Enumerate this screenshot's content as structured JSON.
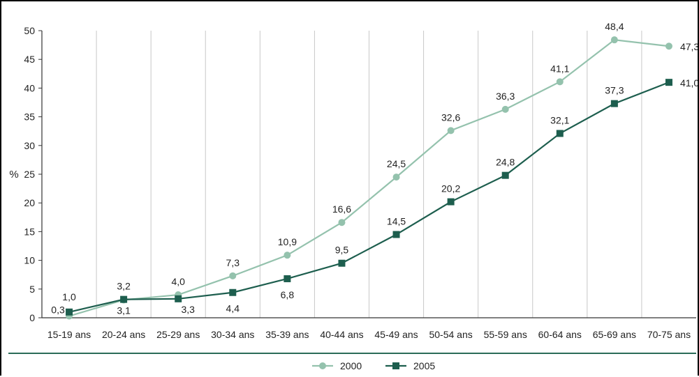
{
  "chart_data": {
    "type": "line",
    "ylabel": "%",
    "xlabel": "",
    "ylim": [
      0,
      50
    ],
    "yticks": [
      0,
      5,
      10,
      15,
      20,
      25,
      30,
      35,
      40,
      45,
      50
    ],
    "categories": [
      "15-19 ans",
      "20-24 ans",
      "25-29 ans",
      "30-34 ans",
      "35-39 ans",
      "40-44 ans",
      "45-49 ans",
      "50-54 ans",
      "55-59 ans",
      "60-64 ans",
      "65-69 ans",
      "70-75 ans"
    ],
    "series": [
      {
        "name": "2000",
        "color": "#94c2ad",
        "marker": "circle",
        "values": [
          0.3,
          3.1,
          4.0,
          7.3,
          10.9,
          16.6,
          24.5,
          32.6,
          36.3,
          41.1,
          48.4,
          47.3
        ],
        "labels": [
          "0,3",
          "3,1",
          "4,0",
          "7,3",
          "10,9",
          "16,6",
          "24,5",
          "32,6",
          "36,3",
          "41,1",
          "48,4",
          "47,3"
        ]
      },
      {
        "name": "2005",
        "color": "#1d5e4e",
        "marker": "square",
        "values": [
          1.0,
          3.2,
          3.3,
          4.4,
          6.8,
          9.5,
          14.5,
          20.2,
          24.8,
          32.1,
          37.3,
          41.0
        ],
        "labels": [
          "1,0",
          "3,2",
          "3,3",
          "4,4",
          "6,8",
          "9,5",
          "14,5",
          "20,2",
          "24,8",
          "32,1",
          "37,3",
          "41,0"
        ]
      }
    ],
    "grid": "vertical",
    "legend_position": "bottom-center"
  }
}
